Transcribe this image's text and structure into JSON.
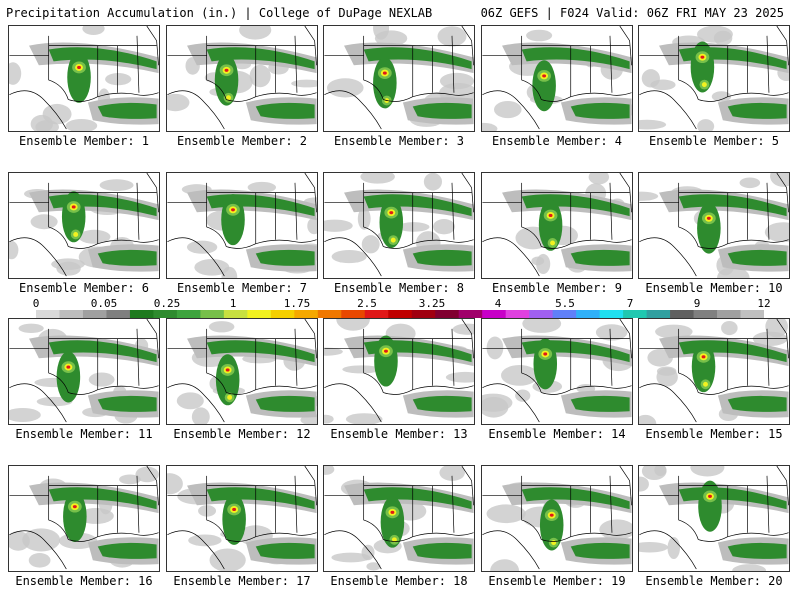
{
  "header": {
    "left_title": "Precipitation Accumulation (in.) | College of DuPage NEXLAB",
    "right_title": "06Z GEFS | F024 Valid: 06Z FRI MAY 23 2025"
  },
  "panels": [
    {
      "caption": "Ensemble Member: 1"
    },
    {
      "caption": "Ensemble Member: 2"
    },
    {
      "caption": "Ensemble Member: 3"
    },
    {
      "caption": "Ensemble Member: 4"
    },
    {
      "caption": "Ensemble Member: 5"
    },
    {
      "caption": "Ensemble Member: 6"
    },
    {
      "caption": "Ensemble Member: 7"
    },
    {
      "caption": "Ensemble Member: 8"
    },
    {
      "caption": "Ensemble Member: 9"
    },
    {
      "caption": "Ensemble Member: 10"
    },
    {
      "caption": "Ensemble Member: 11"
    },
    {
      "caption": "Ensemble Member: 12"
    },
    {
      "caption": "Ensemble Member: 13"
    },
    {
      "caption": "Ensemble Member: 14"
    },
    {
      "caption": "Ensemble Member: 15"
    },
    {
      "caption": "Ensemble Member: 16"
    },
    {
      "caption": "Ensemble Member: 17"
    },
    {
      "caption": "Ensemble Member: 18"
    },
    {
      "caption": "Ensemble Member: 19"
    },
    {
      "caption": "Ensemble Member: 20"
    }
  ],
  "colorbar": {
    "labels": [
      "0",
      "0.05",
      "0.25",
      "1",
      "1.75",
      "2.5",
      "3.25",
      "4",
      "5.5",
      "7",
      "9",
      "12"
    ],
    "colors": [
      "#d9d9d9",
      "#bdbdbd",
      "#a0a0a0",
      "#7f7f7f",
      "#1e7a1e",
      "#2e8b2e",
      "#3da33d",
      "#77c04a",
      "#c8e040",
      "#f2f220",
      "#f5d000",
      "#f5a800",
      "#f07800",
      "#e84800",
      "#e01818",
      "#c00000",
      "#a00010",
      "#800030",
      "#a0006a",
      "#c800c8",
      "#e040e0",
      "#a060f0",
      "#6080f8",
      "#30b0f8",
      "#20e0f0",
      "#20c8b0",
      "#30a0a0",
      "#606060",
      "#808080",
      "#a0a0a0",
      "#c0c0c0"
    ]
  }
}
